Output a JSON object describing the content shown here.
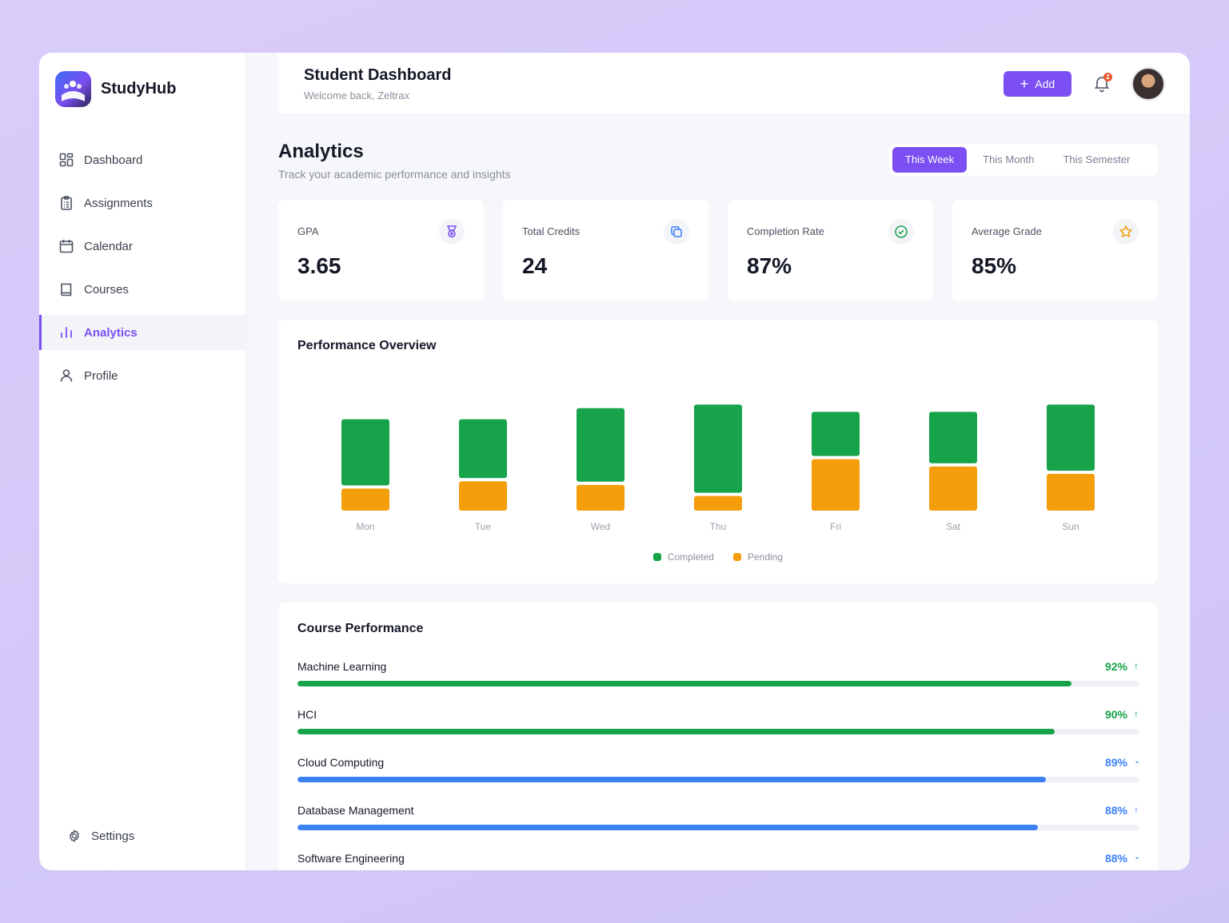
{
  "brand": {
    "name": "StudyHub"
  },
  "sidebar": {
    "items": [
      {
        "label": "Dashboard",
        "icon": "grid-icon"
      },
      {
        "label": "Assignments",
        "icon": "clipboard-icon"
      },
      {
        "label": "Calendar",
        "icon": "calendar-icon"
      },
      {
        "label": "Courses",
        "icon": "book-icon"
      },
      {
        "label": "Analytics",
        "icon": "bar-chart-icon",
        "active": true
      },
      {
        "label": "Profile",
        "icon": "user-icon"
      }
    ],
    "settings_label": "Settings"
  },
  "header": {
    "title": "Student Dashboard",
    "subtitle": "Welcome back, Zeltrax",
    "add_label": "Add",
    "notification_count": "2"
  },
  "analytics": {
    "title": "Analytics",
    "subtitle": "Track your academic performance and insights",
    "ranges": [
      "This Week",
      "This Month",
      "This Semester"
    ],
    "active_range": "This Week"
  },
  "stats": [
    {
      "label": "GPA",
      "value": "3.65",
      "icon": "medal-icon",
      "icon_color": "#7b4ff2"
    },
    {
      "label": "Total Credits",
      "value": "24",
      "icon": "copy-icon",
      "icon_color": "#3b82f6"
    },
    {
      "label": "Completion Rate",
      "value": "87%",
      "icon": "check-circle-icon",
      "icon_color": "#16a34a"
    },
    {
      "label": "Average Grade",
      "value": "85%",
      "icon": "star-icon",
      "icon_color": "#f59e0b"
    }
  ],
  "performance": {
    "title": "Performance Overview"
  },
  "chart_data": {
    "type": "bar",
    "stacked": true,
    "categories": [
      "Mon",
      "Tue",
      "Wed",
      "Thu",
      "Fri",
      "Sat",
      "Sun"
    ],
    "series": [
      {
        "name": "Completed",
        "color": "#16a34a",
        "values": [
          9,
          8,
          10,
          12,
          6,
          7,
          9
        ]
      },
      {
        "name": "Pending",
        "color": "#f59e0b",
        "values": [
          3,
          4,
          3.5,
          2,
          7,
          6,
          5
        ]
      }
    ],
    "legend": "bottom",
    "grid": false
  },
  "courses": {
    "title": "Course Performance",
    "items": [
      {
        "name": "Machine Learning",
        "percent": "92%",
        "value": 92,
        "trend": "↑",
        "color": "#16a34a"
      },
      {
        "name": "HCI",
        "percent": "90%",
        "value": 90,
        "trend": "↑",
        "color": "#16a34a"
      },
      {
        "name": "Cloud Computing",
        "percent": "89%",
        "value": 89,
        "trend": "-",
        "color": "#3b82f6"
      },
      {
        "name": "Database Management",
        "percent": "88%",
        "value": 88,
        "trend": "↑",
        "color": "#3b82f6"
      },
      {
        "name": "Software Engineering",
        "percent": "88%",
        "value": 88,
        "trend": "-",
        "color": "#3b82f6"
      }
    ]
  }
}
